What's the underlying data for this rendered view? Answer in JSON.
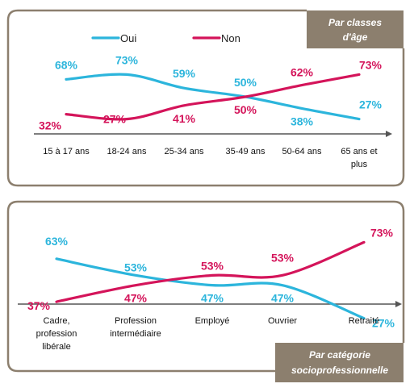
{
  "legend": {
    "oui": "Oui",
    "non": "Non"
  },
  "colors": {
    "oui": "#2cb5dc",
    "non": "#d4145a",
    "frame": "#8c7f6e"
  },
  "chart_data": [
    {
      "type": "line",
      "title": "",
      "tag": [
        "Par classes",
        "d'âge"
      ],
      "categories": [
        "15 à 17 ans",
        "18-24 ans",
        "25-34 ans",
        "35-49 ans",
        "50-64 ans",
        "65 ans et plus"
      ],
      "series": [
        {
          "name": "Oui",
          "values": [
            68,
            73,
            59,
            50,
            38,
            27
          ],
          "labels": [
            "68%",
            "73%",
            "59%",
            "50%",
            "38%",
            "27%"
          ]
        },
        {
          "name": "Non",
          "values": [
            32,
            27,
            41,
            50,
            62,
            73
          ],
          "labels": [
            "32%",
            "27%",
            "41%",
            "50%",
            "62%",
            "73%"
          ]
        }
      ],
      "ylim": [
        0,
        100
      ],
      "grid": false,
      "legend_position": "top-left"
    },
    {
      "type": "line",
      "title": "",
      "tag": [
        "Par catégorie",
        "socioprofessionnelle"
      ],
      "categories": [
        "Cadre, profession libérale",
        "Profession intermédiaire",
        "Employé",
        "Ouvrier",
        "Retraité"
      ],
      "series": [
        {
          "name": "Oui",
          "values": [
            63,
            53,
            47,
            47,
            27
          ],
          "labels": [
            "63%",
            "53%",
            "47%",
            "47%",
            "27%"
          ]
        },
        {
          "name": "Non",
          "values": [
            37,
            47,
            53,
            53,
            73
          ],
          "labels": [
            "37%",
            "47%",
            "53%",
            "53%",
            "73%"
          ]
        }
      ],
      "ylim": [
        0,
        100
      ],
      "grid": false
    }
  ]
}
